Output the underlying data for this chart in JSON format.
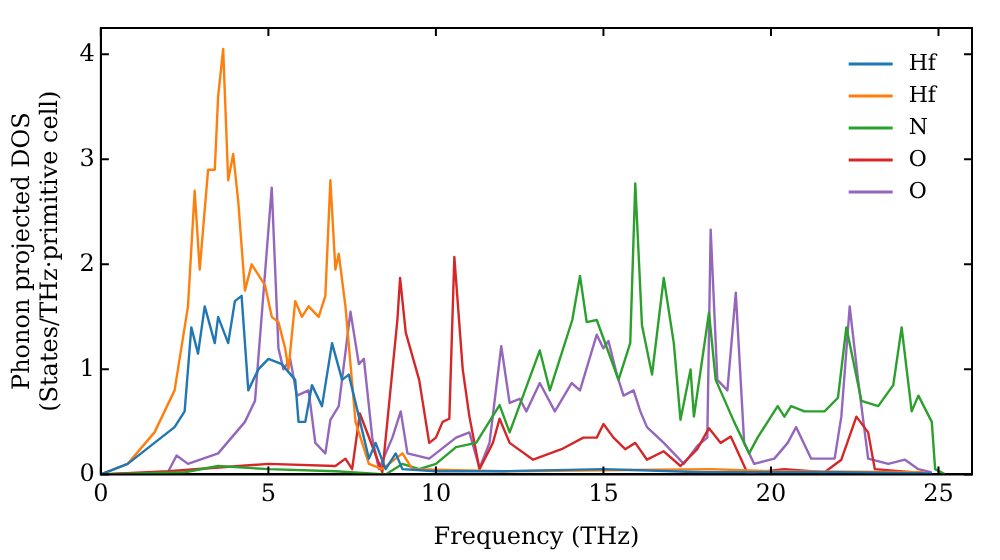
{
  "chart_data": {
    "type": "line",
    "xlabel": "Frequency (THz)",
    "ylabel": "Phonon projected DOS\n(States/THz·primitive cell)",
    "xlim": [
      0,
      26
    ],
    "ylim": [
      0,
      4.25
    ],
    "xticks": [
      0,
      5,
      10,
      15,
      20,
      25
    ],
    "yticks": [
      0,
      1,
      2,
      3,
      4
    ],
    "grid": false,
    "legend": "top right",
    "marker": "none",
    "line_style": "solid",
    "series": [
      {
        "name": "Hf",
        "color": "#1f77b4",
        "x": [
          0,
          0.8,
          1.6,
          2.2,
          2.5,
          2.7,
          2.9,
          3.1,
          3.4,
          3.5,
          3.8,
          4.0,
          4.2,
          4.4,
          4.7,
          5.0,
          5.4,
          5.8,
          5.9,
          6.1,
          6.3,
          6.6,
          6.9,
          7.2,
          7.4,
          7.7,
          8.0,
          8.2,
          8.5,
          8.8,
          9.0,
          10,
          12,
          15,
          18,
          22,
          24.8
        ],
        "values": [
          0,
          0.1,
          0.3,
          0.45,
          0.6,
          1.4,
          1.15,
          1.6,
          1.25,
          1.5,
          1.25,
          1.65,
          1.7,
          0.8,
          1.0,
          1.1,
          1.05,
          0.9,
          0.5,
          0.5,
          0.85,
          0.65,
          1.25,
          0.9,
          0.95,
          0.55,
          0.15,
          0.3,
          0.05,
          0.2,
          0.05,
          0.03,
          0.03,
          0.05,
          0.02,
          0.02,
          0.01
        ]
      },
      {
        "name": "Hf",
        "color": "#ff7f0e",
        "x": [
          0,
          0.8,
          1.6,
          2.2,
          2.6,
          2.8,
          2.95,
          3.2,
          3.4,
          3.5,
          3.65,
          3.8,
          3.95,
          4.1,
          4.3,
          4.5,
          4.9,
          5.1,
          5.3,
          5.5,
          5.6,
          5.8,
          6.0,
          6.2,
          6.5,
          6.7,
          6.85,
          7.0,
          7.1,
          7.3,
          7.6,
          8.0,
          8.4,
          9.0,
          9.3,
          12,
          15,
          18.2,
          20,
          24.6
        ],
        "values": [
          0,
          0.1,
          0.4,
          0.8,
          1.6,
          2.7,
          1.95,
          2.9,
          2.9,
          3.6,
          4.05,
          2.8,
          3.05,
          2.6,
          1.75,
          2.0,
          1.8,
          1.5,
          1.45,
          1.2,
          1.0,
          1.65,
          1.5,
          1.6,
          1.5,
          1.7,
          2.8,
          1.95,
          2.1,
          1.6,
          0.5,
          0.1,
          0.05,
          0.2,
          0.05,
          0.03,
          0.04,
          0.05,
          0.03,
          0.02
        ]
      },
      {
        "name": "N",
        "color": "#2ca02c",
        "x": [
          0,
          2.5,
          3.5,
          5,
          7,
          8.5,
          9.0,
          9.5,
          10,
          10.6,
          11.2,
          11.9,
          12.2,
          13.1,
          13.4,
          14.07,
          14.3,
          14.5,
          14.8,
          15.2,
          15.45,
          15.8,
          15.95,
          16.15,
          16.45,
          16.8,
          17.1,
          17.3,
          17.6,
          17.7,
          18.15,
          18.35,
          18.9,
          19.35,
          19.6,
          20.2,
          20.4,
          20.6,
          21.0,
          21.6,
          22.0,
          22.25,
          22.7,
          23.2,
          23.65,
          23.9,
          24.2,
          24.4,
          24.8,
          24.9,
          25.2
        ],
        "values": [
          0,
          0.02,
          0.08,
          0.05,
          0.03,
          0,
          0.1,
          0.05,
          0.1,
          0.26,
          0.3,
          0.66,
          0.4,
          1.18,
          0.8,
          1.47,
          1.89,
          1.45,
          1.47,
          1.12,
          0.9,
          1.25,
          2.77,
          1.42,
          0.95,
          1.87,
          1.25,
          0.52,
          1.0,
          0.55,
          1.54,
          0.9,
          0.5,
          0.2,
          0.35,
          0.65,
          0.55,
          0.65,
          0.6,
          0.6,
          0.73,
          1.4,
          0.7,
          0.65,
          0.85,
          1.4,
          0.6,
          0.75,
          0.5,
          0.05,
          0
        ]
      },
      {
        "name": "O",
        "color": "#d62728",
        "x": [
          0,
          2,
          5,
          7,
          7.3,
          7.5,
          7.73,
          8.4,
          8.85,
          8.93,
          9.1,
          9.5,
          9.8,
          10.0,
          10.2,
          10.4,
          10.55,
          10.8,
          11.0,
          11.3,
          11.7,
          11.9,
          12.2,
          12.9,
          13.75,
          14.4,
          14.8,
          15.0,
          15.3,
          15.65,
          15.95,
          16.3,
          16.8,
          17.3,
          17.8,
          18.15,
          18.5,
          18.8,
          19.3,
          20.4,
          21.6,
          22.1,
          22.55,
          22.9,
          23.1,
          24.2
        ],
        "values": [
          0,
          0.03,
          0.1,
          0.08,
          0.15,
          0.05,
          0.58,
          0.02,
          1.47,
          1.87,
          1.35,
          0.9,
          0.3,
          0.35,
          0.5,
          0.53,
          2.07,
          1.0,
          0.55,
          0.05,
          0.3,
          0.53,
          0.3,
          0.14,
          0.24,
          0.35,
          0.35,
          0.48,
          0.35,
          0.24,
          0.3,
          0.14,
          0.22,
          0.08,
          0.24,
          0.44,
          0.3,
          0.36,
          0.01,
          0.05,
          0.02,
          0.14,
          0.55,
          0.4,
          0.05,
          0.02
        ]
      },
      {
        "name": "O",
        "color": "#9467bd",
        "x": [
          0,
          2,
          2.26,
          2.6,
          3.5,
          4.3,
          4.6,
          5.1,
          5.3,
          5.45,
          5.65,
          5.85,
          6.2,
          6.4,
          6.7,
          6.85,
          7.1,
          7.45,
          7.7,
          7.85,
          8.1,
          8.3,
          8.7,
          8.95,
          9.15,
          9.8,
          10.2,
          10.6,
          11.0,
          11.3,
          11.6,
          11.95,
          12.2,
          12.5,
          12.7,
          13.1,
          13.55,
          14.05,
          14.3,
          14.8,
          15.0,
          15.15,
          15.4,
          15.6,
          15.9,
          16.1,
          16.3,
          16.8,
          17.4,
          17.8,
          18.1,
          18.2,
          18.4,
          18.7,
          18.95,
          19.2,
          19.5,
          20.1,
          20.5,
          20.75,
          21.2,
          21.9,
          22.1,
          22.35,
          22.6,
          22.9,
          23.5,
          24.0,
          24.4,
          24.8
        ],
        "values": [
          0,
          0.02,
          0.18,
          0.1,
          0.2,
          0.5,
          0.7,
          2.73,
          1.2,
          1.0,
          1.1,
          0.75,
          0.8,
          0.3,
          0.2,
          0.52,
          0.65,
          1.55,
          1.05,
          1.1,
          0.35,
          0.05,
          0.35,
          0.6,
          0.2,
          0.15,
          0.25,
          0.35,
          0.4,
          0.06,
          0.3,
          1.22,
          0.68,
          0.72,
          0.6,
          0.87,
          0.6,
          0.87,
          0.8,
          1.33,
          1.2,
          1.27,
          0.95,
          0.75,
          0.8,
          0.6,
          0.45,
          0.3,
          0.1,
          0.27,
          0.35,
          2.33,
          0.9,
          0.8,
          1.73,
          0.3,
          0.1,
          0.15,
          0.3,
          0.45,
          0.15,
          0.15,
          0.55,
          1.6,
          0.9,
          0.15,
          0.1,
          0.14,
          0.05,
          0.02
        ]
      }
    ]
  }
}
